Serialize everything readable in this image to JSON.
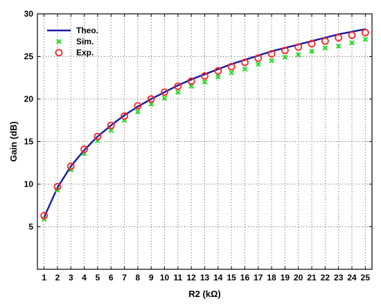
{
  "chart_data": {
    "type": "line",
    "xlabel": "R2 (kΩ)",
    "ylabel": "Gain (dB)",
    "xlim": [
      0.5,
      25.5
    ],
    "ylim": [
      0,
      30
    ],
    "xticks": [
      1,
      2,
      3,
      4,
      5,
      6,
      7,
      8,
      9,
      10,
      11,
      12,
      13,
      14,
      15,
      16,
      17,
      18,
      19,
      20,
      21,
      22,
      23,
      24,
      25
    ],
    "yticks": [
      5,
      10,
      15,
      20,
      25,
      30
    ],
    "grid": true,
    "grid_style": "dotted",
    "legend_position": "top-left",
    "x": [
      1,
      2,
      3,
      4,
      5,
      6,
      7,
      8,
      9,
      10,
      11,
      12,
      13,
      14,
      15,
      16,
      17,
      18,
      19,
      20,
      21,
      22,
      23,
      24,
      25
    ],
    "series": [
      {
        "name": "Theo.",
        "style": "line",
        "color": "#1c1ca8",
        "values": [
          6.1,
          9.6,
          12.1,
          14.0,
          15.6,
          16.9,
          18.1,
          19.1,
          20.0,
          20.8,
          21.6,
          22.3,
          22.9,
          23.5,
          24.1,
          24.6,
          25.1,
          25.6,
          26.0,
          26.4,
          26.8,
          27.2,
          27.6,
          27.9,
          28.2
        ]
      },
      {
        "name": "Sim.",
        "style": "marker-x",
        "color": "#22dd22",
        "values": [
          5.9,
          9.3,
          11.7,
          13.6,
          15.1,
          16.3,
          17.5,
          18.5,
          19.4,
          20.1,
          20.8,
          21.5,
          22.0,
          22.6,
          23.1,
          23.5,
          24.1,
          24.5,
          24.9,
          25.2,
          25.6,
          26.0,
          26.2,
          26.6,
          27.0
        ]
      },
      {
        "name": "Exp.",
        "style": "marker-circle",
        "color": "#ff2020",
        "values": [
          6.3,
          9.7,
          12.1,
          14.1,
          15.6,
          16.9,
          18.0,
          19.2,
          20.0,
          20.8,
          21.5,
          22.1,
          22.7,
          23.3,
          23.8,
          24.3,
          24.8,
          25.3,
          25.7,
          26.1,
          26.5,
          26.8,
          27.2,
          27.5,
          27.8
        ]
      }
    ]
  }
}
